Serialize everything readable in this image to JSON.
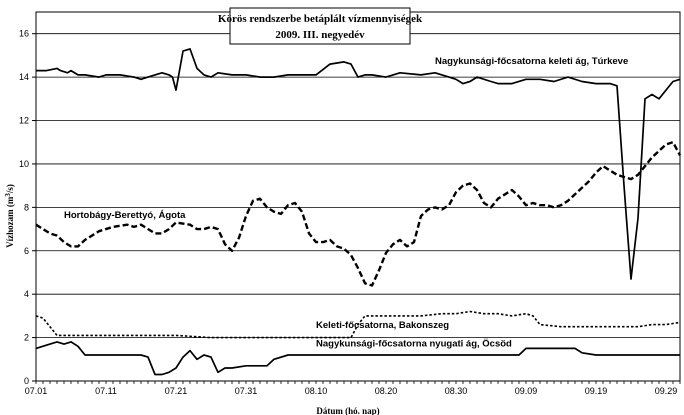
{
  "chart_data": {
    "type": "line",
    "title": "Körös rendszerbe betáplált vízmennyiségek",
    "subtitle": "2009. III. negyedév",
    "xlabel": "Dátum (hó. nap)",
    "ylabel_parts": [
      "Vízhozam (m",
      "3",
      "/s)"
    ],
    "ylim": [
      0,
      17
    ],
    "yticks": [
      0,
      2,
      4,
      6,
      8,
      10,
      12,
      14,
      16
    ],
    "xlim": [
      0,
      92
    ],
    "xticks": [
      {
        "day": 0,
        "label": "07.01"
      },
      {
        "day": 10,
        "label": "07.11"
      },
      {
        "day": 20,
        "label": "07.21"
      },
      {
        "day": 30,
        "label": "07.31"
      },
      {
        "day": 40,
        "label": "08.10"
      },
      {
        "day": 50,
        "label": "08.20"
      },
      {
        "day": 60,
        "label": "08.30"
      },
      {
        "day": 70,
        "label": "09.09"
      },
      {
        "day": 80,
        "label": "09.19"
      },
      {
        "day": 90,
        "label": "09.29"
      }
    ],
    "grid": "horizontal",
    "series": [
      {
        "name": "Nagykunsági-főcsatorna keleti ág, Túrkeve",
        "style": "solid",
        "label_at": {
          "day": 57,
          "value": 14.6
        },
        "label_anchor": "start",
        "x": [
          0,
          1.5,
          3,
          3.5,
          4.5,
          5,
          6,
          7,
          9,
          10,
          12,
          14,
          15,
          16,
          17,
          18,
          19,
          19.5,
          20,
          21,
          22,
          23,
          24,
          25,
          26,
          28,
          30,
          32,
          34,
          36,
          38,
          40,
          42,
          44,
          45,
          46,
          47,
          48,
          50,
          52,
          55,
          57,
          59,
          60,
          61,
          62,
          63,
          65,
          66,
          68,
          70,
          72,
          74,
          76,
          78,
          80,
          81,
          82,
          83,
          84,
          85,
          86,
          87,
          88,
          89,
          90,
          91,
          92
        ],
        "y": [
          14.3,
          14.3,
          14.4,
          14.3,
          14.2,
          14.3,
          14.1,
          14.1,
          14.0,
          14.1,
          14.1,
          14.0,
          13.9,
          14.0,
          14.1,
          14.2,
          14.1,
          14.0,
          13.4,
          15.2,
          15.3,
          14.4,
          14.1,
          14.0,
          14.2,
          14.1,
          14.1,
          14.0,
          14.0,
          14.1,
          14.1,
          14.1,
          14.6,
          14.7,
          14.6,
          14.0,
          14.1,
          14.1,
          14.0,
          14.2,
          14.1,
          14.2,
          14.0,
          13.9,
          13.7,
          13.8,
          14.0,
          13.8,
          13.7,
          13.7,
          13.9,
          13.9,
          13.8,
          14.0,
          13.8,
          13.7,
          13.7,
          13.7,
          13.6,
          9.0,
          4.7,
          7.5,
          13.0,
          13.2,
          13.0,
          13.4,
          13.8,
          13.9
        ]
      },
      {
        "name": "Hortobágy-Berettyó, Ágota",
        "style": "dashed",
        "label_at": {
          "day": 4,
          "value": 7.5
        },
        "label_anchor": "start",
        "x": [
          0,
          2,
          3,
          4,
          5,
          6,
          7,
          9,
          11,
          13,
          14,
          15,
          17,
          18,
          19,
          20,
          22,
          23,
          24,
          25,
          26,
          27,
          28,
          29,
          30,
          31,
          32,
          33,
          34,
          35,
          36,
          37,
          38,
          39,
          40,
          41,
          42,
          43,
          44,
          45,
          46,
          47,
          48,
          49,
          50,
          51,
          52,
          53,
          54,
          55,
          56,
          57,
          58,
          59,
          60,
          61,
          62,
          63,
          64,
          65,
          66,
          67,
          68,
          69,
          70,
          71,
          72,
          73,
          74,
          75,
          76,
          77,
          78,
          79,
          80,
          81,
          82,
          83,
          84,
          85,
          86,
          87,
          88,
          89,
          90,
          91,
          92
        ],
        "y": [
          7.2,
          6.8,
          6.7,
          6.4,
          6.2,
          6.2,
          6.5,
          6.9,
          7.1,
          7.2,
          7.1,
          7.2,
          6.8,
          6.8,
          7.0,
          7.3,
          7.2,
          7.0,
          7.0,
          7.1,
          7.0,
          6.3,
          6.0,
          6.6,
          7.6,
          8.3,
          8.4,
          8.0,
          7.8,
          7.7,
          8.1,
          8.2,
          7.8,
          6.8,
          6.4,
          6.4,
          6.5,
          6.2,
          6.1,
          5.8,
          5.2,
          4.5,
          4.4,
          5.1,
          5.9,
          6.3,
          6.5,
          6.2,
          6.4,
          7.6,
          7.9,
          8.0,
          7.9,
          8.1,
          8.7,
          9.0,
          9.1,
          8.8,
          8.2,
          8.0,
          8.4,
          8.6,
          8.8,
          8.5,
          8.1,
          8.2,
          8.1,
          8.1,
          8.0,
          8.1,
          8.3,
          8.6,
          8.9,
          9.2,
          9.6,
          9.9,
          9.7,
          9.5,
          9.4,
          9.3,
          9.5,
          9.9,
          10.3,
          10.6,
          10.9,
          11.0,
          10.4
        ]
      },
      {
        "name": "Keleti-főcsatorna, Bakonszeg",
        "style": "dotted",
        "label_at": {
          "day": 40,
          "value": 2.45
        },
        "label_anchor": "end",
        "x": [
          0,
          1,
          2,
          3,
          4,
          5,
          6,
          10,
          15,
          20,
          25,
          30,
          35,
          40,
          44,
          45,
          46,
          47,
          48,
          50,
          52,
          55,
          58,
          60,
          62,
          64,
          66,
          68,
          70,
          71,
          72,
          75,
          78,
          80,
          82,
          84,
          86,
          88,
          90,
          92
        ],
        "y": [
          3.0,
          2.9,
          2.5,
          2.1,
          2.1,
          2.1,
          2.1,
          2.1,
          2.1,
          2.1,
          2.0,
          2.0,
          2.0,
          2.0,
          2.0,
          2.0,
          2.6,
          3.0,
          3.0,
          3.0,
          3.0,
          3.0,
          3.1,
          3.1,
          3.2,
          3.1,
          3.1,
          3.0,
          3.1,
          3.0,
          2.6,
          2.5,
          2.5,
          2.5,
          2.5,
          2.5,
          2.5,
          2.6,
          2.6,
          2.7
        ]
      },
      {
        "name": "Nagykunsági-főcsatorna nyugati ág, Öcsöd",
        "style": "solid",
        "label_at": {
          "day": 40,
          "value": 1.6
        },
        "label_anchor": "start",
        "x": [
          0,
          2,
          3,
          4,
          5,
          6,
          7,
          8,
          10,
          11,
          12,
          13,
          14,
          15,
          16,
          17,
          18,
          19,
          20,
          21,
          22,
          23,
          24,
          25,
          26,
          27,
          28,
          30,
          32,
          33,
          34,
          36,
          40,
          45,
          50,
          55,
          60,
          62,
          65,
          68,
          69,
          70,
          72,
          75,
          76,
          77,
          78,
          80,
          82,
          84,
          86,
          88,
          90,
          92
        ],
        "y": [
          1.5,
          1.7,
          1.8,
          1.7,
          1.8,
          1.6,
          1.2,
          1.2,
          1.2,
          1.2,
          1.2,
          1.2,
          1.2,
          1.2,
          1.1,
          0.3,
          0.3,
          0.4,
          0.6,
          1.1,
          1.4,
          1.0,
          1.2,
          1.1,
          0.4,
          0.6,
          0.6,
          0.7,
          0.7,
          0.7,
          1.0,
          1.2,
          1.2,
          1.2,
          1.2,
          1.2,
          1.2,
          1.2,
          1.2,
          1.2,
          1.2,
          1.5,
          1.5,
          1.5,
          1.5,
          1.5,
          1.3,
          1.2,
          1.2,
          1.2,
          1.2,
          1.2,
          1.2,
          1.2
        ]
      }
    ]
  }
}
